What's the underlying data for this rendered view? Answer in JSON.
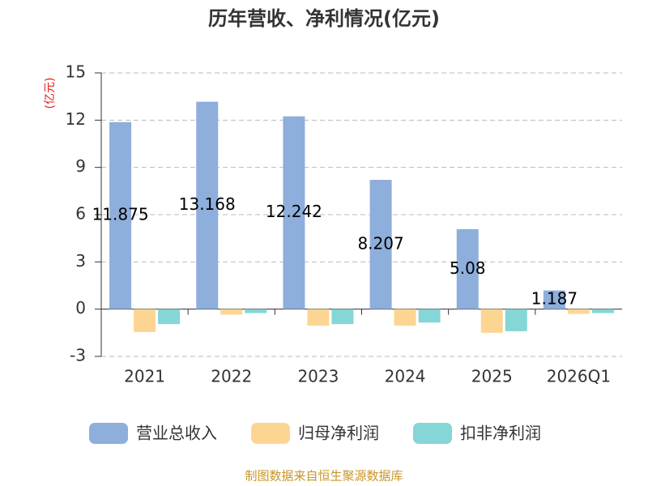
{
  "chart_data": {
    "type": "bar",
    "title": "历年营收、净利情况(亿元)",
    "ylabel": "(亿元)",
    "categories": [
      "2021",
      "2022",
      "2023",
      "2024",
      "2025",
      "2026Q1"
    ],
    "series": [
      {
        "name": "营业总收入",
        "color": "#8eaedc",
        "values": [
          11.875,
          13.168,
          12.242,
          8.207,
          5.08,
          1.187
        ],
        "show_labels": true
      },
      {
        "name": "归母净利润",
        "color": "#fdd593",
        "values": [
          -1.45,
          -0.35,
          -1.05,
          -1.05,
          -1.5,
          -0.3
        ]
      },
      {
        "name": "扣非净利润",
        "color": "#85d6d6",
        "values": [
          -0.95,
          -0.25,
          -0.95,
          -0.85,
          -1.4,
          -0.25
        ]
      }
    ],
    "ylim": [
      -3,
      15
    ],
    "yticks": [
      -3,
      0,
      3,
      6,
      9,
      12,
      15
    ],
    "grid": true,
    "legend_position": "bottom",
    "source": "制图数据来自恒生聚源数据库"
  }
}
